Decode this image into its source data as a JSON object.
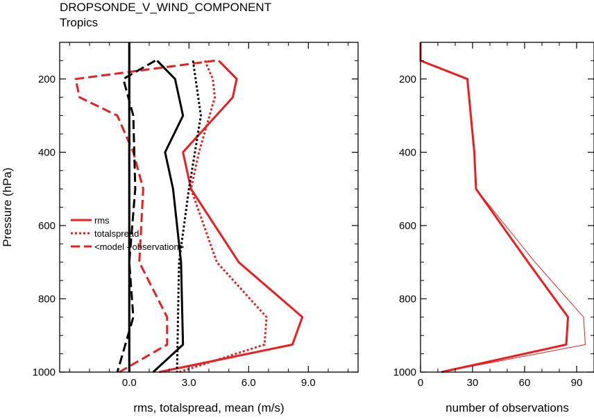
{
  "header": {
    "title": "DROPSONDE_V_WIND_COMPONENT",
    "subtitle": "Tropics"
  },
  "colors": {
    "model_a": "#ee1c1c",
    "model_b": "#000000"
  },
  "chart_data": [
    {
      "type": "line",
      "xlabel": "rms, totalspread, mean (m/s)",
      "ylabel": "Pressure (hPa)",
      "xlim": [
        -3.5,
        11.5
      ],
      "ylim": [
        1000,
        100
      ],
      "y_reversed": true,
      "x_ticks": [
        0,
        3,
        6,
        9
      ],
      "x_tick_labels": [
        "0.0",
        "3.0",
        "6.0",
        "9.0"
      ],
      "y_ticks": [
        200,
        400,
        600,
        800,
        1000
      ],
      "y_tick_labels": [
        "200",
        "400",
        "600",
        "800",
        "1000"
      ],
      "grid": false,
      "legend_position": "center-left",
      "legend": [
        {
          "label": "rms",
          "style": "solid"
        },
        {
          "label": "totalspread",
          "style": "dotted"
        },
        {
          "label": "<model - observation>",
          "style": "dashed"
        }
      ],
      "series": [
        {
          "model": "a",
          "style": "solid",
          "points": [
            [
              4.5,
              150
            ],
            [
              5.4,
              200
            ],
            [
              5.2,
              250
            ],
            [
              2.7,
              400
            ],
            [
              3.1,
              500
            ],
            [
              5.5,
              700
            ],
            [
              8.7,
              850
            ],
            [
              8.2,
              925
            ],
            [
              1.5,
              1000
            ]
          ]
        },
        {
          "model": "a",
          "style": "dotted",
          "points": [
            [
              3.8,
              150
            ],
            [
              4.2,
              200
            ],
            [
              4.3,
              250
            ],
            [
              3.5,
              400
            ],
            [
              3.1,
              500
            ],
            [
              4.4,
              700
            ],
            [
              6.9,
              850
            ],
            [
              6.8,
              925
            ],
            [
              2.5,
              1000
            ]
          ]
        },
        {
          "model": "a",
          "style": "dashed",
          "points": [
            [
              4.3,
              150
            ],
            [
              -2.7,
              200
            ],
            [
              -2.5,
              250
            ],
            [
              -0.6,
              300
            ],
            [
              0.2,
              400
            ],
            [
              0.7,
              500
            ],
            [
              0.5,
              700
            ],
            [
              1.9,
              850
            ],
            [
              1.9,
              925
            ],
            [
              -0.5,
              1000
            ]
          ]
        },
        {
          "model": "b",
          "style": "solid",
          "points": [
            [
              1.4,
              150
            ],
            [
              2.3,
              200
            ],
            [
              2.7,
              300
            ],
            [
              1.8,
              400
            ],
            [
              2.2,
              500
            ],
            [
              2.6,
              700
            ],
            [
              2.7,
              925
            ],
            [
              1.2,
              1000
            ]
          ]
        },
        {
          "model": "b",
          "style": "dotted",
          "points": [
            [
              3.2,
              150
            ],
            [
              3.6,
              300
            ],
            [
              3.0,
              500
            ],
            [
              2.5,
              700
            ],
            [
              2.4,
              1000
            ]
          ]
        },
        {
          "model": "b",
          "style": "dashed",
          "points": [
            [
              1.3,
              150
            ],
            [
              -0.3,
              200
            ],
            [
              0.2,
              300
            ],
            [
              0.3,
              500
            ],
            [
              0.0,
              700
            ],
            [
              0.2,
              850
            ],
            [
              -0.2,
              925
            ],
            [
              -0.6,
              1000
            ]
          ]
        },
        {
          "model": "zero",
          "style": "solid",
          "points": [
            [
              0,
              100
            ],
            [
              0,
              1000
            ]
          ]
        }
      ]
    },
    {
      "type": "line",
      "xlabel": "number of observations",
      "ylabel": "",
      "xlim": [
        0,
        100
      ],
      "ylim": [
        1000,
        100
      ],
      "y_reversed": true,
      "x_ticks": [
        0,
        30,
        60,
        90
      ],
      "x_tick_labels": [
        "0",
        "30",
        "60",
        "90"
      ],
      "y_ticks": [
        200,
        400,
        600,
        800,
        1000
      ],
      "y_tick_labels": [
        "200",
        "400",
        "600",
        "800",
        "1000"
      ],
      "grid": false,
      "series": [
        {
          "model": "a",
          "weight": "thick",
          "points": [
            [
              0,
              100
            ],
            [
              0,
              150
            ],
            [
              27,
              200
            ],
            [
              28,
              250
            ],
            [
              29,
              300
            ],
            [
              31,
              400
            ],
            [
              32,
              500
            ],
            [
              62,
              700
            ],
            [
              85,
              850
            ],
            [
              84,
              925
            ],
            [
              12,
              1000
            ]
          ]
        },
        {
          "model": "a",
          "weight": "thin",
          "points": [
            [
              0,
              100
            ],
            [
              0,
              150
            ],
            [
              27,
              200
            ],
            [
              28,
              250
            ],
            [
              29,
              300
            ],
            [
              31,
              400
            ],
            [
              32,
              500
            ],
            [
              66,
              700
            ],
            [
              94,
              850
            ],
            [
              95,
              925
            ],
            [
              12,
              1000
            ]
          ]
        }
      ]
    }
  ]
}
